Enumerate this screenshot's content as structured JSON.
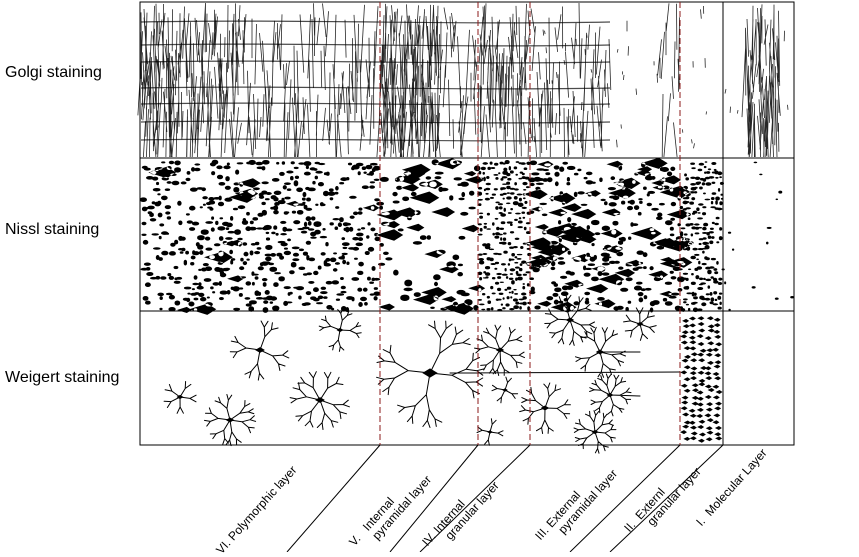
{
  "rows": [
    {
      "label": "Golgi staining"
    },
    {
      "label": "Nissl staining"
    },
    {
      "label": "Weigert staining"
    }
  ],
  "layers": [
    {
      "label": "VI. Polymorphic layer"
    },
    {
      "label": "V.   Internal\n      pyramidal layer"
    },
    {
      "label": "IV. Internal\n      granular layer"
    },
    {
      "label": "III. External\n      pyramidal layer"
    },
    {
      "label": "II.  Externl\n      granular layer"
    },
    {
      "label": "I.  Molecular Layer"
    }
  ],
  "colors": {
    "divider": "#8b1a1a",
    "ink": "#000000"
  }
}
